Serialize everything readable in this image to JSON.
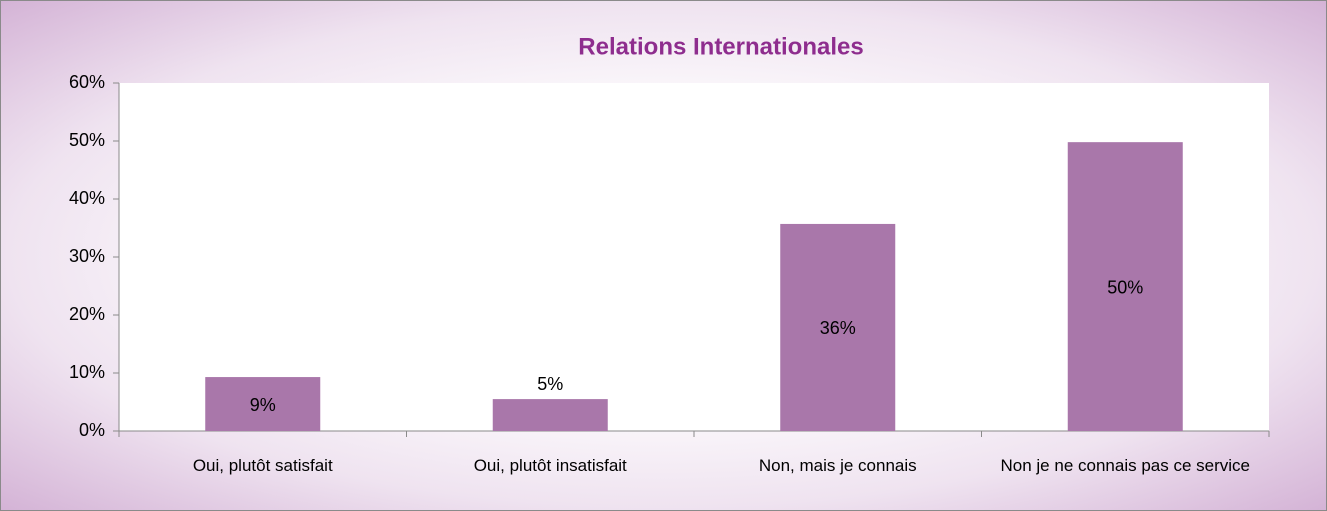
{
  "chart_data": {
    "type": "bar",
    "title": "Relations Internationales",
    "categories": [
      "Oui, plutôt satisfait",
      "Oui, plutôt insatisfait",
      "Non, mais je connais",
      "Non je ne connais pas ce service"
    ],
    "values": [
      9.3,
      5.5,
      35.7,
      49.8
    ],
    "value_labels": [
      "9%",
      "5%",
      "36%",
      "50%"
    ],
    "color": "#a977aa",
    "ylim": [
      0,
      60
    ],
    "yticks": [
      {
        "value": 0,
        "label": "0%"
      },
      {
        "value": 10,
        "label": "10%"
      },
      {
        "value": 20,
        "label": "20%"
      },
      {
        "value": 30,
        "label": "30%"
      },
      {
        "value": 40,
        "label": "40%"
      },
      {
        "value": 50,
        "label": "50%"
      },
      {
        "value": 60,
        "label": "60%"
      }
    ],
    "grid": false
  }
}
